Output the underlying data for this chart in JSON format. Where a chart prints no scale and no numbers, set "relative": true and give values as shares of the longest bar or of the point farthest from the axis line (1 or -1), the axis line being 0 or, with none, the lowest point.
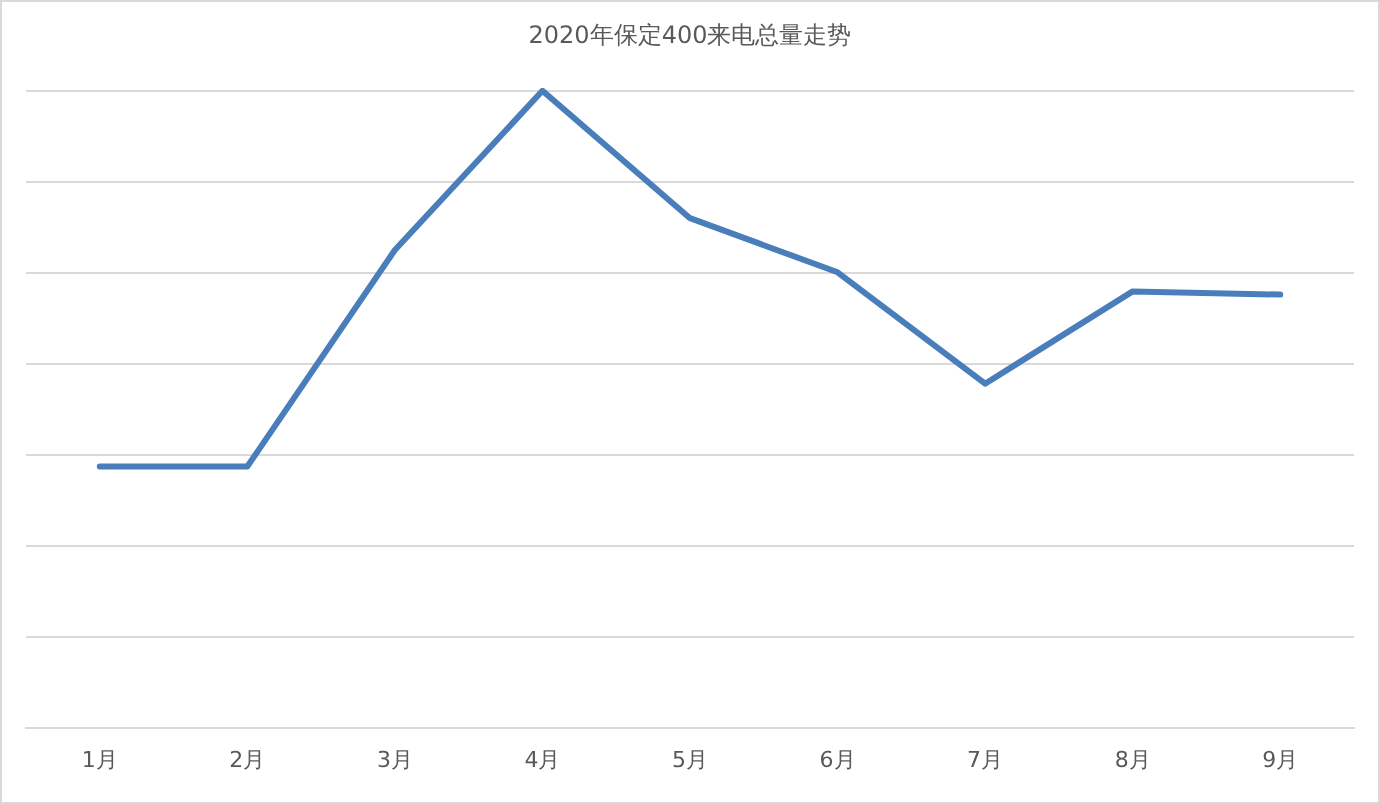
{
  "chart_data": {
    "type": "line",
    "title": "2020年保定400来电总量走势",
    "categories": [
      "1月",
      "2月",
      "3月",
      "4月",
      "5月",
      "6月",
      "7月",
      "8月",
      "9月"
    ],
    "series": [
      {
        "color": "#4a7ebb",
        "values": [
          0.41,
          0.41,
          0.75,
          1,
          0.8,
          0.715,
          0.54,
          0.685,
          0.68
        ]
      }
    ],
    "relative": true,
    "grid": "y",
    "legend": false,
    "marker": "none",
    "line_style": "solid"
  }
}
